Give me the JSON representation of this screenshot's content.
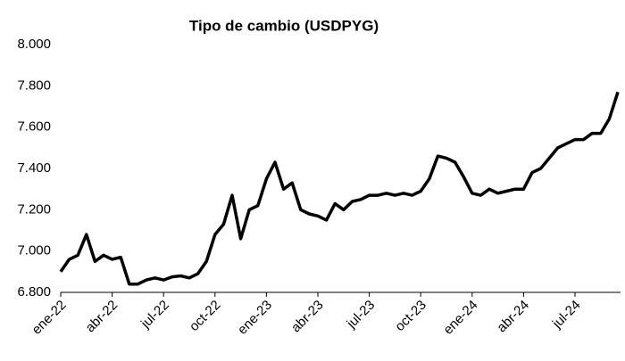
{
  "chart_data": {
    "type": "line",
    "title": "Tipo de cambio (USDPYG)",
    "categories": [
      "ene-22",
      null,
      null,
      null,
      null,
      null,
      "abr-22",
      null,
      null,
      null,
      null,
      null,
      "jul-22",
      null,
      null,
      null,
      null,
      null,
      "oct-22",
      null,
      null,
      null,
      null,
      null,
      "ene-23",
      null,
      null,
      null,
      null,
      null,
      "abr-23",
      null,
      null,
      null,
      null,
      null,
      "jul-23",
      null,
      null,
      null,
      null,
      null,
      "oct-23",
      null,
      null,
      null,
      null,
      null,
      "ene-24",
      null,
      null,
      null,
      null,
      null,
      "abr-24",
      null,
      null,
      null,
      null,
      null,
      "jul-24",
      null,
      null,
      null,
      null,
      null
    ],
    "series": [
      {
        "name": "USDPYG",
        "color": "#000000",
        "values": [
          6900,
          6960,
          6980,
          7080,
          6950,
          6980,
          6960,
          6970,
          6840,
          6840,
          6860,
          6870,
          6860,
          6875,
          6880,
          6870,
          6890,
          6950,
          7080,
          7130,
          7270,
          7060,
          7200,
          7220,
          7350,
          7430,
          7300,
          7330,
          7200,
          7180,
          7170,
          7150,
          7230,
          7200,
          7240,
          7250,
          7270,
          7270,
          7280,
          7270,
          7280,
          7270,
          7290,
          7350,
          7460,
          7450,
          7430,
          7360,
          7280,
          7270,
          7300,
          7280,
          7290,
          7300,
          7300,
          7380,
          7400,
          7450,
          7500,
          7520,
          7540,
          7540,
          7570,
          7570,
          7640,
          7770
        ]
      }
    ],
    "ylim": [
      6800,
      8000
    ],
    "yticks": [
      {
        "value": 6800,
        "label": "6.800"
      },
      {
        "value": 7000,
        "label": "7.000"
      },
      {
        "value": 7200,
        "label": "7.200"
      },
      {
        "value": 7400,
        "label": "7.400"
      },
      {
        "value": 7600,
        "label": "7.600"
      },
      {
        "value": 7800,
        "label": "7.800"
      },
      {
        "value": 8000,
        "label": "8.000"
      }
    ],
    "grid": false
  }
}
